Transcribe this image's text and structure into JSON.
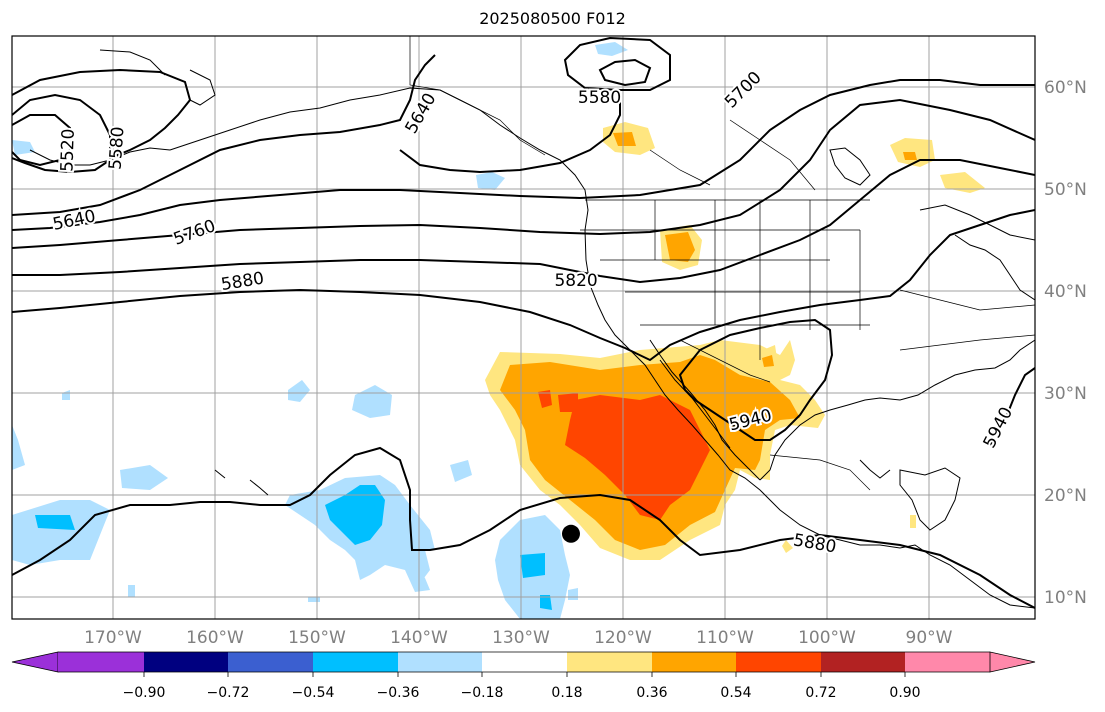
{
  "title": "2025080500 F012",
  "longitude_labels": [
    "170°W",
    "160°W",
    "150°W",
    "140°W",
    "130°W",
    "120°W",
    "110°W",
    "100°W",
    "90°W"
  ],
  "latitude_labels": [
    "60°N",
    "50°N",
    "40°N",
    "30°N",
    "20°N",
    "10°N"
  ],
  "contour_labels": [
    {
      "text": "5580",
      "lon": -122.3,
      "lat": 58.9,
      "rot": 0
    },
    {
      "text": "5700",
      "lon": -108.2,
      "lat": 59.7,
      "rot": -45
    },
    {
      "text": "5640",
      "lon": -139.8,
      "lat": 57.4,
      "rot": -60
    },
    {
      "text": "5520",
      "lon": -174.4,
      "lat": 53.8,
      "rot": -88
    },
    {
      "text": "5580",
      "lon": -169.6,
      "lat": 54.0,
      "rot": -86
    },
    {
      "text": "5640",
      "lon": -173.8,
      "lat": 46.9,
      "rot": -12
    },
    {
      "text": "5760",
      "lon": -162.0,
      "lat": 45.7,
      "rot": -20
    },
    {
      "text": "5880",
      "lon": -157.3,
      "lat": 40.9,
      "rot": -9
    },
    {
      "text": "5820",
      "lon": -124.6,
      "lat": 41.0,
      "rot": 0
    },
    {
      "text": "5940",
      "lon": -107.5,
      "lat": 27.3,
      "rot": -14
    },
    {
      "text": "5940",
      "lon": -83.2,
      "lat": 26.6,
      "rot": -63
    },
    {
      "text": "5880",
      "lon": -101.2,
      "lat": 15.2,
      "rot": 10
    }
  ],
  "colorbar": {
    "ticks": [
      "−0.90",
      "−0.72",
      "−0.54",
      "−0.36",
      "−0.18",
      "0.18",
      "0.36",
      "0.54",
      "0.72",
      "0.90"
    ],
    "colors": [
      "#9b30d9",
      "#000080",
      "#3b5fd0",
      "#00bfff",
      "#b0e0ff",
      "#ffffff",
      "#ffe680",
      "#ffa500",
      "#ff4500",
      "#b22222",
      "#ff88aa"
    ]
  },
  "storm_marker": {
    "lon": -125.1,
    "lat": 16.2
  }
}
